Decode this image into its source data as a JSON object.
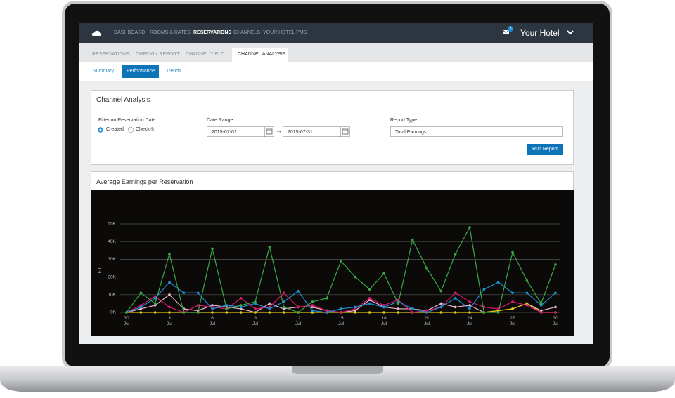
{
  "top_bar": {
    "nav": [
      "DASHBOARD",
      "ROOMS & RATES",
      "RESERVATIONS",
      "CHANNELS",
      "YOUR HOTEL PMS"
    ],
    "notifications": 3,
    "hotel": "Your Hotel"
  },
  "tabs": [
    "RESERVATIONS",
    "CHECKIN REPORT",
    "CHANNEL YIELD",
    "CHANNEL ANALYSIS"
  ],
  "subtabs": [
    "Summary",
    "Performance",
    "Trends"
  ],
  "form": {
    "title": "Channel Analysis",
    "filter_label": "Filter on Reservation Date",
    "filter_options": [
      "Created",
      "Check-In"
    ],
    "date_label": "Date Range",
    "date_from": "2015-07-01",
    "date_separator": "→",
    "date_to": "2015-07-31",
    "report_label": "Report Type",
    "report_value": "Total Earnings",
    "button": "Run Report"
  },
  "chart_data": {
    "type": "line",
    "title": "Average Earnings per Reservation",
    "ylabel": "FJD",
    "categories": [
      "30 Jul",
      null,
      null,
      "3 Jul",
      null,
      null,
      "6 Jul",
      null,
      null,
      "9 Jul",
      null,
      null,
      "12 Jul",
      null,
      null,
      "15 Jul",
      null,
      null,
      "18 Jul",
      null,
      null,
      "21 Jul",
      null,
      null,
      "24 Jul",
      null,
      null,
      "27 Jul",
      null,
      null,
      "30 Jul"
    ],
    "ylim": [
      0,
      50000
    ],
    "yticks": [
      {
        "value": 0,
        "label": "0K"
      },
      {
        "value": 10000,
        "label": "10K"
      },
      {
        "value": 20000,
        "label": "20K"
      },
      {
        "value": 30000,
        "label": "30K"
      },
      {
        "value": 40000,
        "label": "40K"
      },
      {
        "value": 50000,
        "label": "50K"
      }
    ],
    "grid": true,
    "series": [
      {
        "color": "#e8b9cf",
        "values": [
          0,
          2000,
          4000,
          10000,
          2000,
          1000,
          4000,
          3000,
          2000,
          0,
          5000,
          2000,
          3000,
          3000,
          1000,
          0,
          1000,
          7000,
          3000,
          2000,
          2000,
          1000,
          5000,
          3000,
          4000,
          0,
          1000,
          2000,
          5000,
          1000,
          3000
        ]
      },
      {
        "color": "#e0c619",
        "values": [
          0,
          0,
          0,
          0,
          0,
          0,
          0,
          0,
          0,
          0,
          0,
          0,
          0,
          0,
          0,
          0,
          0,
          0,
          0,
          0,
          0,
          0,
          0,
          0,
          0,
          0,
          1000,
          2000,
          5000,
          0,
          0
        ]
      },
      {
        "color": "#d6186e",
        "values": [
          0,
          4000,
          9000,
          3000,
          0,
          4000,
          3000,
          2000,
          8000,
          2000,
          3000,
          11000,
          3000,
          4000,
          1000,
          0,
          2000,
          8000,
          4000,
          7000,
          0,
          1000,
          3000,
          11000,
          6000,
          3000,
          2000,
          6000,
          4000,
          0,
          0
        ]
      },
      {
        "color": "#1f8fd6",
        "values": [
          0,
          3000,
          8000,
          17000,
          11000,
          11000,
          2000,
          4000,
          3000,
          5000,
          2000,
          6000,
          12000,
          1000,
          0,
          2000,
          3000,
          5000,
          3000,
          6000,
          2000,
          0,
          3000,
          8000,
          2000,
          13000,
          17000,
          11000,
          11000,
          4000,
          11000
        ]
      },
      {
        "color": "#3aa845",
        "values": [
          0,
          11000,
          5000,
          33000,
          0,
          0,
          36000,
          2000,
          4000,
          6000,
          37000,
          3000,
          0,
          6000,
          8000,
          29000,
          20000,
          13000,
          22000,
          5000,
          41000,
          25000,
          12000,
          33000,
          48000,
          0,
          0,
          34000,
          18000,
          5000,
          27000
        ]
      }
    ]
  }
}
